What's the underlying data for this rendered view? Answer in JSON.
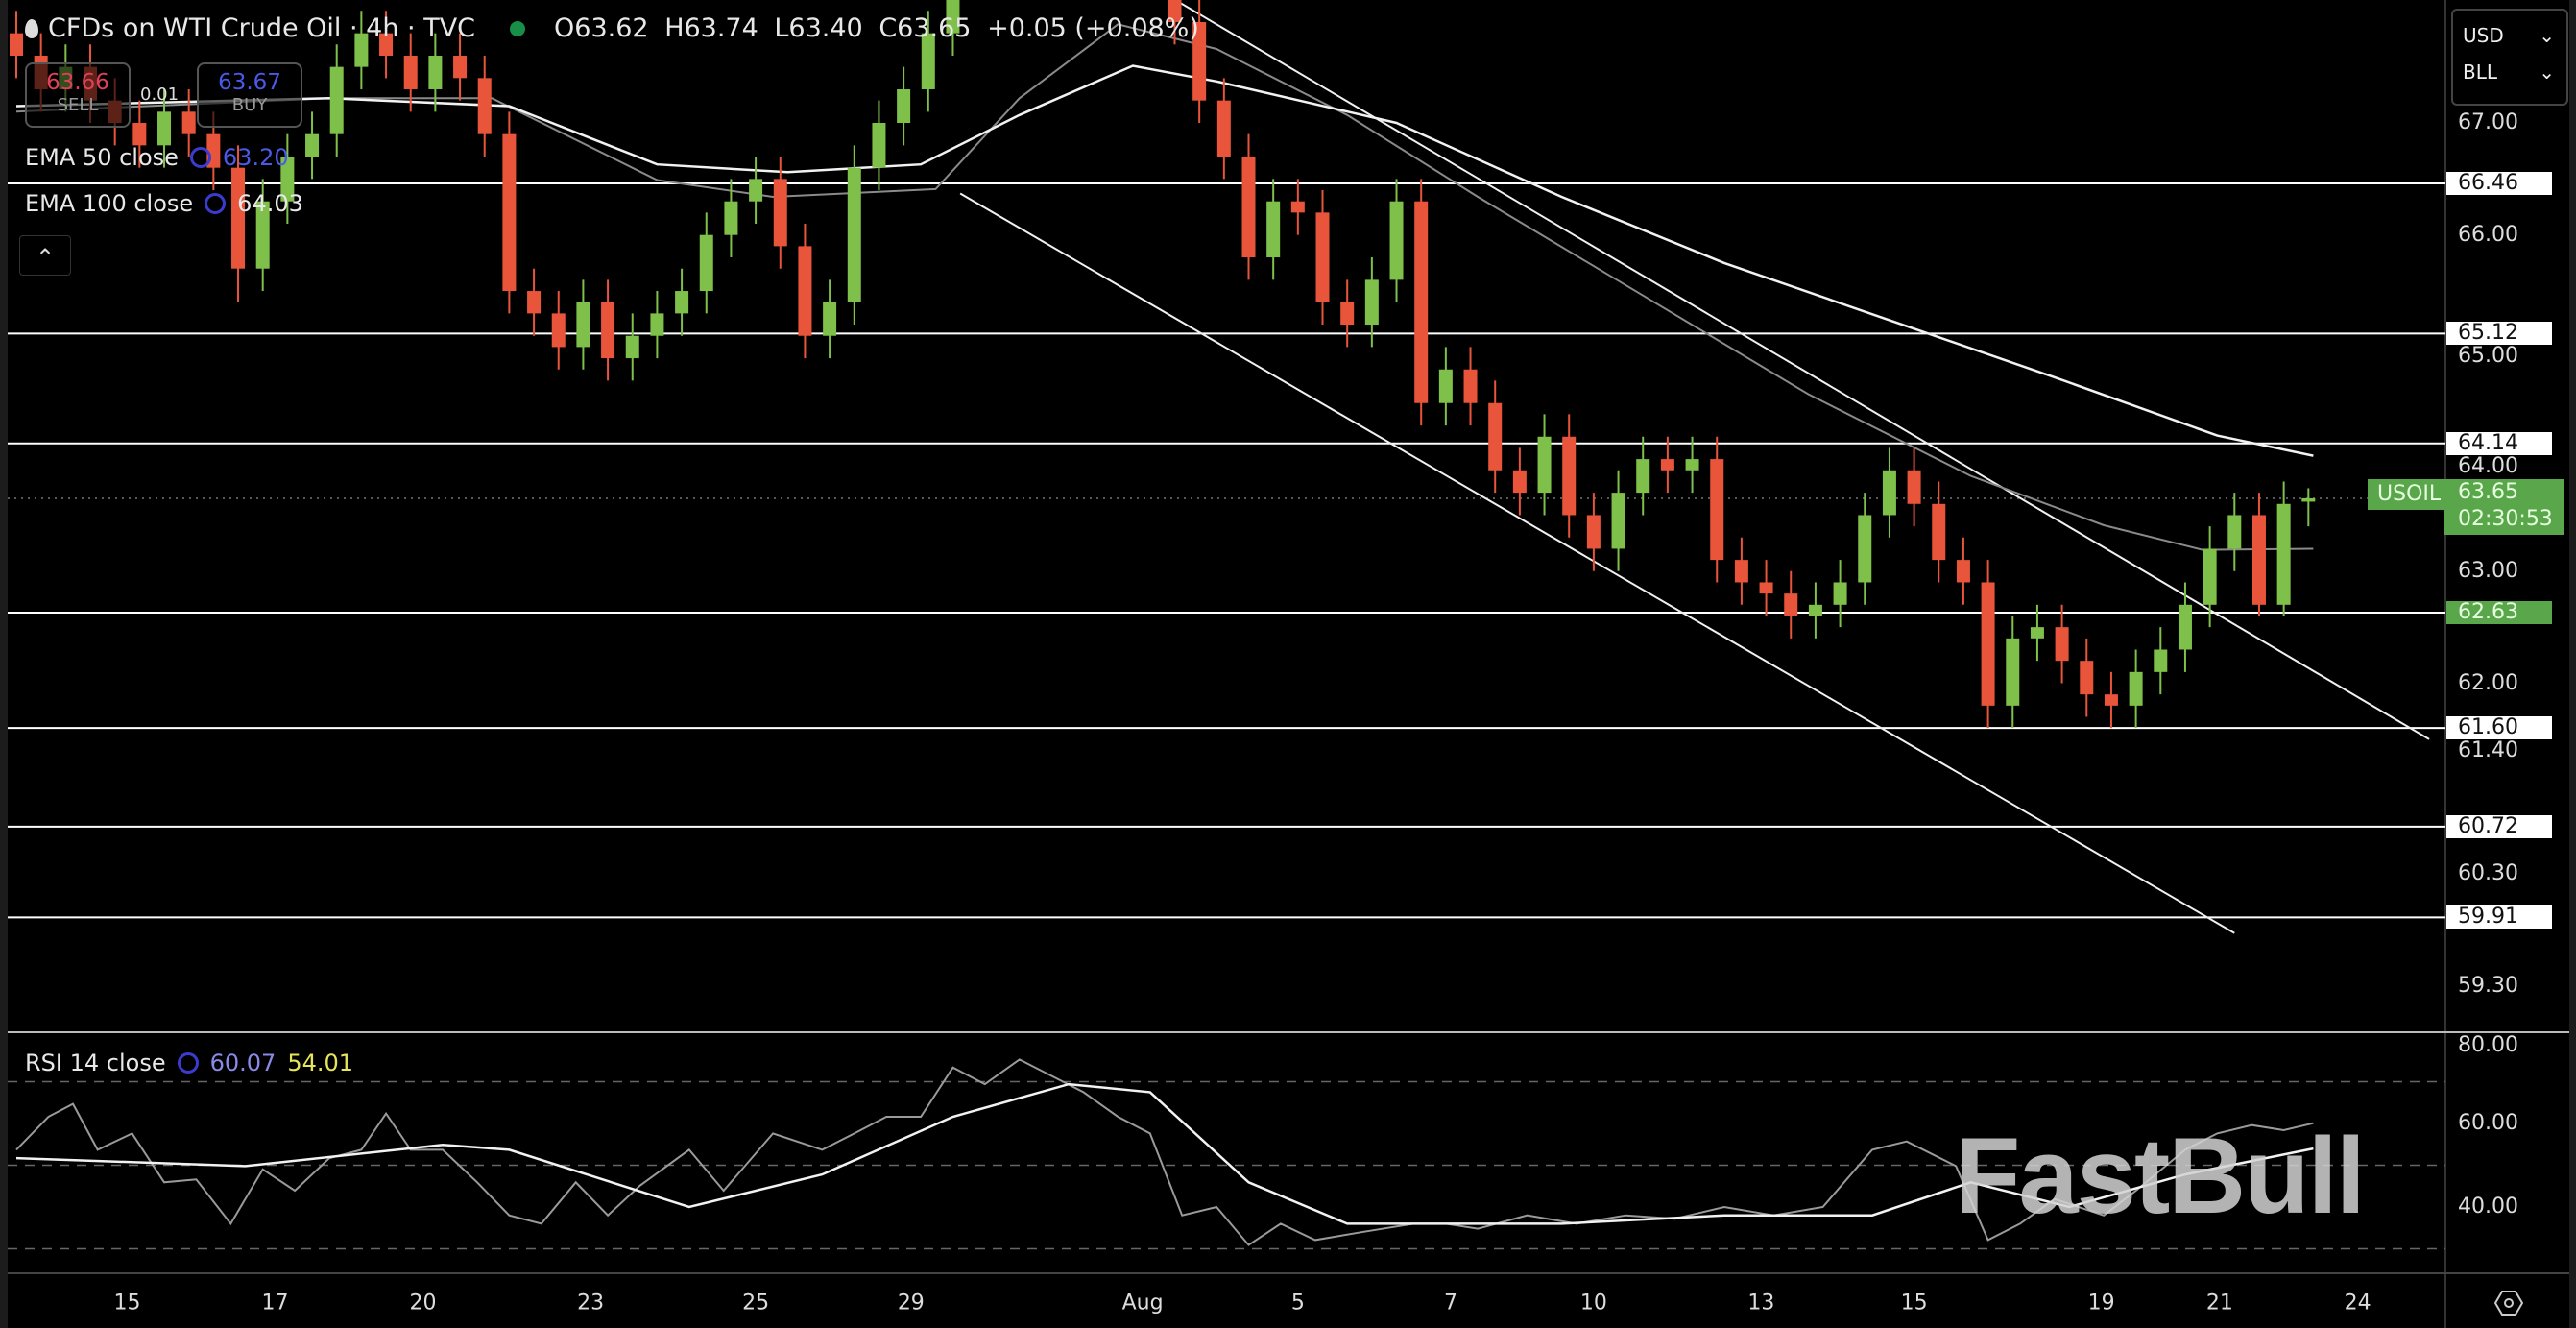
{
  "header": {
    "title": "CFDs on WTI Crude Oil · 4h · TVC",
    "ohlc": {
      "open": "O63.62",
      "high": "H63.74",
      "low": "L63.40",
      "close": "C63.65",
      "change": "+0.05 (+0.08%)"
    }
  },
  "trade": {
    "sell_price": "63.66",
    "sell_label": "SELL",
    "spread": "0.01",
    "buy_price": "63.67",
    "buy_label": "BUY"
  },
  "indicators": {
    "ema50": {
      "label": "EMA 50 close",
      "value": "63.20"
    },
    "ema100": {
      "label": "EMA 100 close",
      "value": "64.03"
    },
    "rsi": {
      "label": "RSI 14 close",
      "value": "60.07",
      "ma_value": "54.01"
    }
  },
  "collapse_icon": "chevron-up-icon",
  "currency": {
    "currency": "USD",
    "unit": "BLL"
  },
  "current_price": {
    "symbol": "USOIL",
    "price": "63.65",
    "countdown": "02:30:53"
  },
  "watermark": "FastBull",
  "colors": {
    "up": "#7fc04a",
    "down": "#e8553a",
    "level": "#ffffff",
    "ema50": "#8a8a8a",
    "ema100": "#f2f2f2",
    "price_tag": "#5aa64a"
  },
  "chart_data": {
    "type": "candlestick",
    "symbol": "USOIL",
    "timeframe": "4h",
    "price_ticks": [
      "67.00",
      "66.00",
      "65.00",
      "64.00",
      "63.00",
      "62.00",
      "61.40",
      "60.30",
      "59.30"
    ],
    "levels": [
      {
        "price": 66.46,
        "label": "66.46"
      },
      {
        "price": 65.12,
        "label": "65.12"
      },
      {
        "price": 64.14,
        "label": "64.14"
      },
      {
        "price": 62.63,
        "label": "62.63",
        "highlight": true
      },
      {
        "price": 61.6,
        "label": "61.60"
      },
      {
        "price": 60.72,
        "label": "60.72"
      },
      {
        "price": 59.91,
        "label": "59.91"
      }
    ],
    "x_ticks": [
      {
        "label": "15",
        "bar": 4.5
      },
      {
        "label": "17",
        "bar": 10.5
      },
      {
        "label": "20",
        "bar": 16.5
      },
      {
        "label": "23",
        "bar": 23.3
      },
      {
        "label": "25",
        "bar": 30
      },
      {
        "label": "29",
        "bar": 36.3
      },
      {
        "label": "Aug",
        "bar": 45.7
      },
      {
        "label": "5",
        "bar": 52
      },
      {
        "label": "7",
        "bar": 58.2
      },
      {
        "label": "10",
        "bar": 64
      },
      {
        "label": "13",
        "bar": 70.8
      },
      {
        "label": "15",
        "bar": 77
      },
      {
        "label": "19",
        "bar": 84.6
      },
      {
        "label": "21",
        "bar": 89.4
      },
      {
        "label": "24",
        "bar": 95
      }
    ],
    "candles_ohlc": [
      [
        67.8,
        68.0,
        67.4,
        67.6
      ],
      [
        67.6,
        67.8,
        67.1,
        67.3
      ],
      [
        67.3,
        67.7,
        67.1,
        67.5
      ],
      [
        67.5,
        67.7,
        67.0,
        67.2
      ],
      [
        67.2,
        67.4,
        66.8,
        67.0
      ],
      [
        67.0,
        67.2,
        66.6,
        66.8
      ],
      [
        66.8,
        67.3,
        66.6,
        67.1
      ],
      [
        67.1,
        67.3,
        66.7,
        66.9
      ],
      [
        66.9,
        67.1,
        66.4,
        66.6
      ],
      [
        66.6,
        66.8,
        65.4,
        65.7
      ],
      [
        65.7,
        66.5,
        65.5,
        66.3
      ],
      [
        66.3,
        66.9,
        66.1,
        66.7
      ],
      [
        66.7,
        67.1,
        66.5,
        66.9
      ],
      [
        66.9,
        67.7,
        66.7,
        67.5
      ],
      [
        67.5,
        68.0,
        67.3,
        67.8
      ],
      [
        67.8,
        68.0,
        67.4,
        67.6
      ],
      [
        67.6,
        67.8,
        67.1,
        67.3
      ],
      [
        67.3,
        67.8,
        67.1,
        67.6
      ],
      [
        67.6,
        67.8,
        67.2,
        67.4
      ],
      [
        67.4,
        67.6,
        66.7,
        66.9
      ],
      [
        66.9,
        67.1,
        65.3,
        65.5
      ],
      [
        65.5,
        65.7,
        65.1,
        65.3
      ],
      [
        65.3,
        65.5,
        64.8,
        65.0
      ],
      [
        65.0,
        65.6,
        64.8,
        65.4
      ],
      [
        65.4,
        65.6,
        64.7,
        64.9
      ],
      [
        64.9,
        65.3,
        64.7,
        65.1
      ],
      [
        65.1,
        65.5,
        64.9,
        65.3
      ],
      [
        65.3,
        65.7,
        65.1,
        65.5
      ],
      [
        65.5,
        66.2,
        65.3,
        66.0
      ],
      [
        66.0,
        66.5,
        65.8,
        66.3
      ],
      [
        66.3,
        66.7,
        66.1,
        66.5
      ],
      [
        66.5,
        66.7,
        65.7,
        65.9
      ],
      [
        65.9,
        66.1,
        64.9,
        65.1
      ],
      [
        65.1,
        65.6,
        64.9,
        65.4
      ],
      [
        65.4,
        66.8,
        65.2,
        66.6
      ],
      [
        66.6,
        67.2,
        66.4,
        67.0
      ],
      [
        67.0,
        67.5,
        66.8,
        67.3
      ],
      [
        67.3,
        68.0,
        67.1,
        67.8
      ],
      [
        67.8,
        68.5,
        67.6,
        68.3
      ],
      null,
      null,
      null,
      null,
      null,
      null,
      null,
      null,
      [
        68.5,
        68.7,
        67.7,
        67.9
      ],
      [
        67.9,
        68.1,
        67.0,
        67.2
      ],
      [
        67.2,
        67.4,
        66.5,
        66.7
      ],
      [
        66.7,
        66.9,
        65.6,
        65.8
      ],
      [
        65.8,
        66.5,
        65.6,
        66.3
      ],
      [
        66.3,
        66.5,
        66.0,
        66.2
      ],
      [
        66.2,
        66.4,
        65.2,
        65.4
      ],
      [
        65.4,
        65.6,
        65.0,
        65.2
      ],
      [
        65.2,
        65.8,
        65.0,
        65.6
      ],
      [
        65.6,
        66.5,
        65.4,
        66.3
      ],
      [
        66.3,
        66.5,
        64.3,
        64.5
      ],
      [
        64.5,
        65.0,
        64.3,
        64.8
      ],
      [
        64.8,
        65.0,
        64.3,
        64.5
      ],
      [
        64.5,
        64.7,
        63.7,
        63.9
      ],
      [
        63.9,
        64.1,
        63.5,
        63.7
      ],
      [
        63.7,
        64.4,
        63.5,
        64.2
      ],
      [
        64.2,
        64.4,
        63.3,
        63.5
      ],
      [
        63.5,
        63.7,
        63.0,
        63.2
      ],
      [
        63.2,
        63.9,
        63.0,
        63.7
      ],
      [
        63.7,
        64.2,
        63.5,
        64.0
      ],
      [
        64.0,
        64.2,
        63.7,
        63.9
      ],
      [
        63.9,
        64.2,
        63.7,
        64.0
      ],
      [
        64.0,
        64.2,
        62.9,
        63.1
      ],
      [
        63.1,
        63.3,
        62.7,
        62.9
      ],
      [
        62.9,
        63.1,
        62.6,
        62.8
      ],
      [
        62.8,
        63.0,
        62.4,
        62.6
      ],
      [
        62.6,
        62.9,
        62.4,
        62.7
      ],
      [
        62.7,
        63.1,
        62.5,
        62.9
      ],
      [
        62.9,
        63.7,
        62.7,
        63.5
      ],
      [
        63.5,
        64.1,
        63.3,
        63.9
      ],
      [
        63.9,
        64.1,
        63.4,
        63.6
      ],
      [
        63.6,
        63.8,
        62.9,
        63.1
      ],
      [
        63.1,
        63.3,
        62.7,
        62.9
      ],
      [
        62.9,
        63.1,
        61.6,
        61.8
      ],
      [
        61.8,
        62.6,
        61.6,
        62.4
      ],
      [
        62.4,
        62.7,
        62.2,
        62.5
      ],
      [
        62.5,
        62.7,
        62.0,
        62.2
      ],
      [
        62.2,
        62.4,
        61.7,
        61.9
      ],
      [
        61.9,
        62.1,
        61.6,
        61.8
      ],
      [
        61.8,
        62.3,
        61.6,
        62.1
      ],
      [
        62.1,
        62.5,
        61.9,
        62.3
      ],
      [
        62.3,
        62.9,
        62.1,
        62.7
      ],
      [
        62.7,
        63.4,
        62.5,
        63.2
      ],
      [
        63.2,
        63.7,
        63.0,
        63.5
      ],
      [
        63.5,
        63.7,
        62.6,
        62.7
      ],
      [
        62.7,
        63.8,
        62.6,
        63.6
      ],
      [
        63.62,
        63.74,
        63.4,
        63.65
      ]
    ],
    "ema100": [
      [
        0,
        67.15
      ],
      [
        12.7,
        67.22
      ],
      [
        20,
        67.15
      ],
      [
        26,
        66.63
      ],
      [
        31.3,
        66.56
      ],
      [
        36.7,
        66.63
      ],
      [
        40.7,
        67.07
      ],
      [
        45.3,
        67.51
      ],
      [
        48.7,
        67.37
      ],
      [
        56,
        67.0
      ],
      [
        62.7,
        66.34
      ],
      [
        69.3,
        65.75
      ],
      [
        76,
        65.24
      ],
      [
        82.7,
        64.73
      ],
      [
        89.3,
        64.21
      ],
      [
        93.2,
        64.03
      ]
    ],
    "ema50": [
      [
        0,
        67.1
      ],
      [
        12.7,
        67.22
      ],
      [
        19.3,
        67.22
      ],
      [
        26,
        66.49
      ],
      [
        30.7,
        66.34
      ],
      [
        37.3,
        66.41
      ],
      [
        40.7,
        67.22
      ],
      [
        44.7,
        67.88
      ],
      [
        48.7,
        67.66
      ],
      [
        54,
        67.07
      ],
      [
        59.3,
        66.34
      ],
      [
        66,
        65.46
      ],
      [
        72.7,
        64.58
      ],
      [
        79.3,
        63.85
      ],
      [
        84.7,
        63.41
      ],
      [
        88.7,
        63.19
      ],
      [
        93.2,
        63.2
      ]
    ],
    "trendlines": [
      {
        "from": [
          47,
          68.1
        ],
        "to": [
          97.9,
          61.5
        ]
      },
      {
        "from": [
          38.3,
          66.37
        ],
        "to": [
          90,
          59.77
        ]
      }
    ],
    "rsi": {
      "ticks": [
        "80.00",
        "60.00",
        "40.00"
      ],
      "bands": [
        70,
        50,
        30
      ],
      "values": [
        [
          0,
          53.7
        ],
        [
          1.3,
          61.6
        ],
        [
          2.3,
          64.7
        ],
        [
          3.3,
          53.7
        ],
        [
          4.7,
          57.6
        ],
        [
          6,
          45.9
        ],
        [
          7.3,
          46.6
        ],
        [
          8.7,
          36.0
        ],
        [
          10,
          49.0
        ],
        [
          11.3,
          43.9
        ],
        [
          12.7,
          51.7
        ],
        [
          14,
          53.7
        ],
        [
          15,
          62.4
        ],
        [
          16,
          53.7
        ],
        [
          17.3,
          53.7
        ],
        [
          18.7,
          45.9
        ],
        [
          20,
          38.0
        ],
        [
          21.3,
          36.0
        ],
        [
          22.7,
          45.9
        ],
        [
          24,
          38.0
        ],
        [
          25.3,
          45.1
        ],
        [
          27.3,
          53.7
        ],
        [
          28.7,
          43.9
        ],
        [
          30.7,
          57.6
        ],
        [
          32.7,
          53.7
        ],
        [
          34,
          57.6
        ],
        [
          35.3,
          61.6
        ],
        [
          36.7,
          61.6
        ],
        [
          38,
          73.4
        ],
        [
          39.3,
          69.4
        ],
        [
          40.7,
          75.3
        ],
        [
          42,
          71.4
        ],
        [
          43.3,
          67.5
        ],
        [
          44.7,
          61.6
        ],
        [
          46,
          57.6
        ],
        [
          47.3,
          38.0
        ],
        [
          48.7,
          40.0
        ],
        [
          50,
          30.9
        ],
        [
          51.3,
          36.0
        ],
        [
          52.7,
          32.1
        ],
        [
          54.7,
          34.1
        ],
        [
          56.7,
          36.0
        ],
        [
          58,
          36.0
        ],
        [
          59.3,
          34.8
        ],
        [
          61.3,
          38.0
        ],
        [
          63.3,
          36.0
        ],
        [
          65.3,
          38.0
        ],
        [
          67.3,
          37.2
        ],
        [
          69.3,
          40.0
        ],
        [
          71.3,
          38.0
        ],
        [
          73.3,
          40.0
        ],
        [
          75.3,
          53.7
        ],
        [
          76.7,
          55.7
        ],
        [
          78.7,
          49.8
        ],
        [
          80,
          32.1
        ],
        [
          81.3,
          36.0
        ],
        [
          82.7,
          41.9
        ],
        [
          84.7,
          38.0
        ],
        [
          86,
          43.9
        ],
        [
          88,
          53.7
        ],
        [
          89.3,
          57.6
        ],
        [
          90.7,
          59.6
        ],
        [
          92,
          58.4
        ],
        [
          93.2,
          60.07
        ]
      ],
      "ma": [
        [
          0,
          51.7
        ],
        [
          9.3,
          49.8
        ],
        [
          17.3,
          54.9
        ],
        [
          20,
          53.7
        ],
        [
          27.3,
          40.0
        ],
        [
          32.7,
          47.8
        ],
        [
          38,
          61.6
        ],
        [
          42.7,
          69.4
        ],
        [
          46,
          67.5
        ],
        [
          50,
          45.9
        ],
        [
          54,
          36.0
        ],
        [
          62.7,
          36.0
        ],
        [
          69.3,
          38.0
        ],
        [
          75.3,
          38.0
        ],
        [
          79.3,
          45.9
        ],
        [
          83.3,
          40.0
        ],
        [
          88,
          47.8
        ],
        [
          93.2,
          54.01
        ]
      ]
    }
  }
}
